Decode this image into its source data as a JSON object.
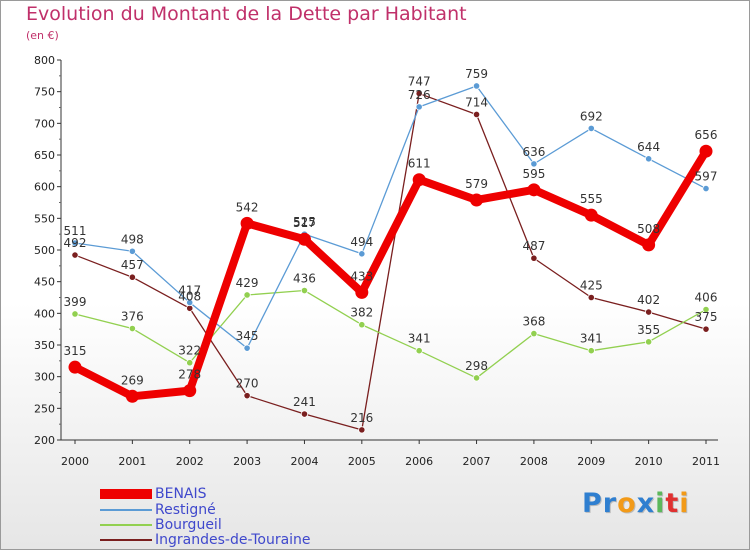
{
  "chart_data": {
    "type": "line",
    "title": "Evolution du Montant de la Dette par Habitant",
    "subtitle": "(en €)",
    "x": [
      "2000",
      "2001",
      "2002",
      "2003",
      "2004",
      "2005",
      "2006",
      "2007",
      "2008",
      "2009",
      "2010",
      "2011"
    ],
    "ylim": [
      200,
      800
    ],
    "yticks": [
      200,
      250,
      300,
      350,
      400,
      450,
      500,
      550,
      600,
      650,
      700,
      750,
      800
    ],
    "grid": false,
    "legend_position": "bottom-left",
    "series": [
      {
        "name": "BENAIS",
        "color": "#ee0000",
        "values": [
          315,
          269,
          278,
          542,
          517,
          433,
          611,
          579,
          595,
          555,
          508,
          656
        ]
      },
      {
        "name": "Restigné",
        "color": "#5b9bd5",
        "values": [
          511,
          498,
          417,
          345,
          525,
          494,
          726,
          759,
          636,
          692,
          644,
          597
        ]
      },
      {
        "name": "Bourgueil",
        "color": "#92d050",
        "values": [
          399,
          376,
          322,
          429,
          436,
          382,
          341,
          298,
          368,
          341,
          355,
          406
        ]
      },
      {
        "name": "Ingrandes-de-Touraine",
        "color": "#7a1f1f",
        "values": [
          492,
          457,
          408,
          270,
          241,
          216,
          747,
          714,
          487,
          425,
          402,
          375
        ]
      }
    ]
  },
  "logo": {
    "text": "Proxiti",
    "letters": [
      "P",
      "r",
      "o",
      "x",
      "i",
      "t",
      "i"
    ],
    "colors": [
      "#2f7fd0",
      "#2f7fd0",
      "#f29a18",
      "#2f7fd0",
      "#5cb85c",
      "#e03030",
      "#f29a18"
    ]
  }
}
